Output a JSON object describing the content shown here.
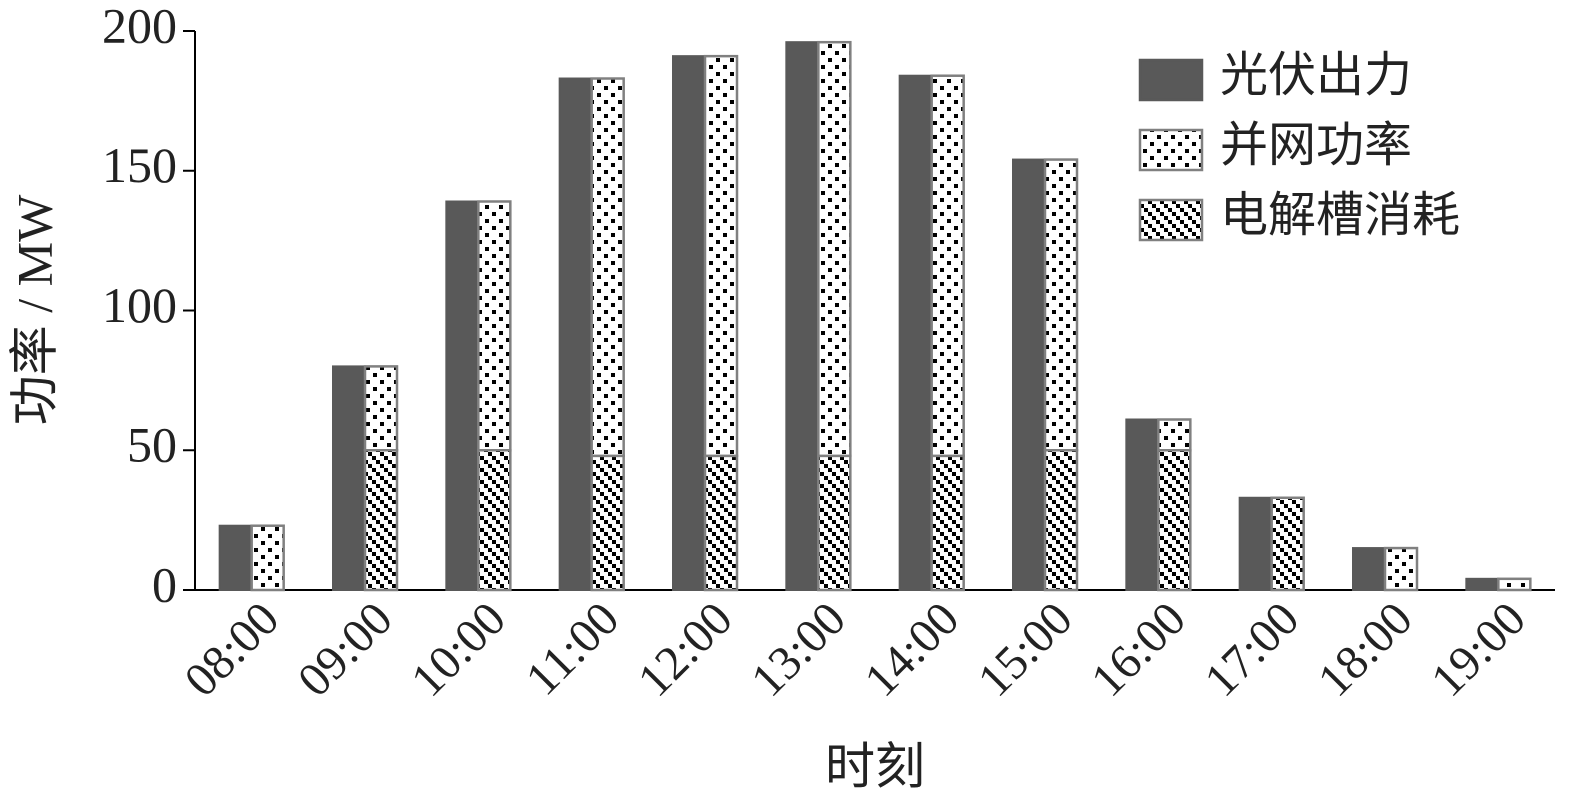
{
  "chart_data": {
    "type": "bar",
    "x_label": "时刻",
    "y_label": "功率 / MW",
    "categories": [
      "08:00",
      "09:00",
      "10:00",
      "11:00",
      "12:00",
      "13:00",
      "14:00",
      "15:00",
      "16:00",
      "17:00",
      "18:00",
      "19:00"
    ],
    "series": [
      {
        "name": "光伏出力",
        "color": "#595959",
        "pattern": "solid",
        "values": [
          23,
          80,
          139,
          183,
          191,
          196,
          184,
          154,
          61,
          33,
          15,
          4
        ]
      },
      {
        "name": "并网功率",
        "color": "#ffffff",
        "pattern": "dots",
        "values": [
          23,
          30,
          89,
          135,
          143,
          148,
          136,
          104,
          11,
          0,
          15,
          4
        ]
      },
      {
        "name": "电解槽消耗",
        "color": "#ffffff",
        "pattern": "hatch",
        "values": [
          0,
          50,
          50,
          48,
          48,
          48,
          48,
          50,
          50,
          33,
          0,
          0
        ]
      }
    ],
    "ylim": [
      0,
      200
    ],
    "yticks": [
      0,
      50,
      100,
      150,
      200
    ],
    "grid": false,
    "legend": "top-right"
  }
}
